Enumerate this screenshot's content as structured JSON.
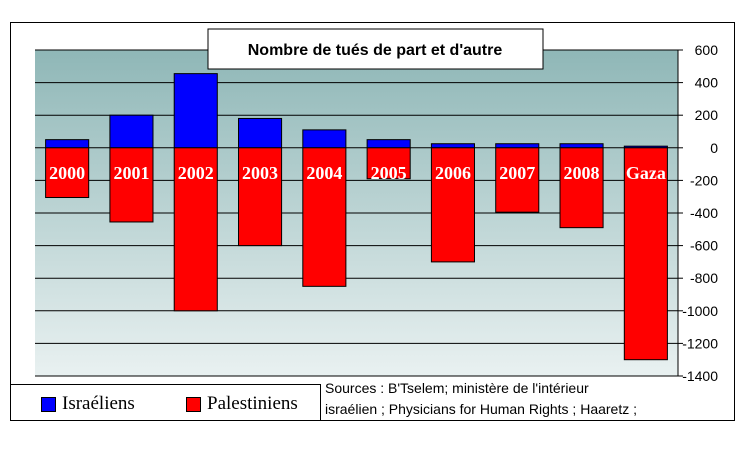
{
  "chart_data": {
    "type": "bar",
    "title": "Nombre de tués de part et d'autre",
    "categories": [
      "2000",
      "2001",
      "2002",
      "2003",
      "2004",
      "2005",
      "2006",
      "2007",
      "2008",
      "Gaza"
    ],
    "series": [
      {
        "name": "Israéliens",
        "color": "#0000ff",
        "values": [
          50,
          200,
          455,
          180,
          110,
          50,
          25,
          25,
          25,
          10
        ]
      },
      {
        "name": "Palestiniens",
        "color": "#ff0000",
        "values": [
          -305,
          -455,
          -1000,
          -600,
          -850,
          -190,
          -700,
          -395,
          -490,
          -1300
        ]
      }
    ],
    "ylim": [
      -1400,
      600
    ],
    "yticks": [
      600,
      400,
      200,
      0,
      -200,
      -400,
      -600,
      -800,
      -1000,
      -1200,
      -1400
    ],
    "grid": true,
    "legend": "bottom-left"
  },
  "sources": {
    "line1": "Sources : B'Tselem; ministère de l'intérieur",
    "line2": "israélien ; Physicians for Human Rights ; Haaretz ;"
  }
}
